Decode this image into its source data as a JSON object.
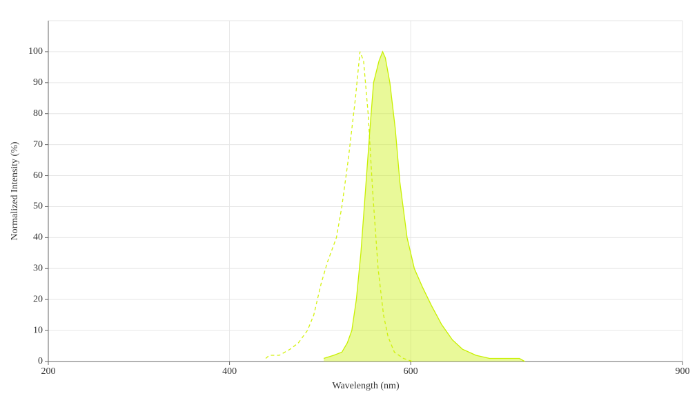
{
  "chart_data": {
    "type": "line",
    "x_label": "Wavelength (nm)",
    "y_label": "Normalized Intensity (%)",
    "xlim": [
      200,
      900
    ],
    "xticks": [
      200,
      400,
      600,
      900
    ],
    "ylim": [
      0,
      110
    ],
    "yticks": [
      0,
      10,
      20,
      30,
      40,
      50,
      60,
      70,
      80,
      90,
      100
    ],
    "grid": true,
    "series": [
      {
        "color": "#d4f20f",
        "dashed": true,
        "filled": false,
        "x": [
          440,
          444,
          455,
          467,
          476,
          486,
          493,
          501,
          508,
          518,
          524,
          531,
          539,
          544,
          548,
          553,
          558,
          564,
          570,
          575,
          582,
          592,
          602
        ],
        "values": [
          1,
          2,
          2,
          4,
          6,
          10,
          15,
          25,
          32,
          40,
          50,
          65,
          85,
          100,
          97,
          80,
          55,
          30,
          15,
          8,
          3,
          1,
          0
        ]
      },
      {
        "color": "#c8f000",
        "dashed": false,
        "filled": true,
        "x": [
          504,
          515,
          524,
          530,
          535,
          540,
          545,
          550,
          555,
          559,
          565,
          569,
          572,
          577,
          583,
          588,
          596,
          604,
          613,
          623,
          634,
          646,
          657,
          672,
          687,
          720,
          726
        ],
        "values": [
          1,
          2,
          3,
          6,
          10,
          20,
          35,
          55,
          75,
          90,
          97,
          100,
          98,
          90,
          75,
          58,
          40,
          30,
          24,
          18,
          12,
          7,
          4,
          2,
          1,
          1,
          0
        ]
      }
    ]
  }
}
